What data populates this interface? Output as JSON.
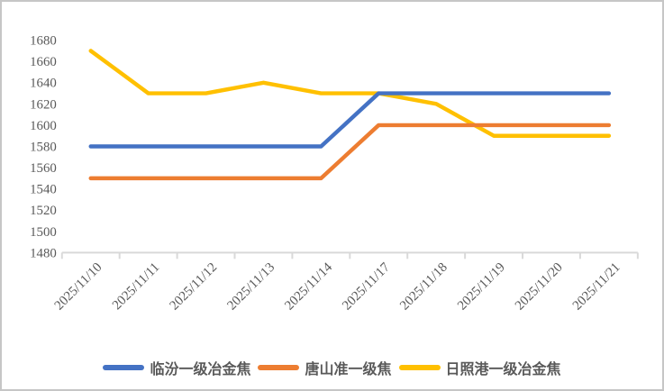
{
  "chart_data": {
    "type": "line",
    "title": "",
    "xlabel": "",
    "ylabel": "",
    "categories": [
      "2025/11/10",
      "2025/11/11",
      "2025/11/12",
      "2025/11/13",
      "2025/11/14",
      "2025/11/17",
      "2025/11/18",
      "2025/11/19",
      "2025/11/20",
      "2025/11/21"
    ],
    "series": [
      {
        "name": "临汾一级冶金焦",
        "color": "#4472C4",
        "values": [
          1580,
          1580,
          1580,
          1580,
          1580,
          1630,
          1630,
          1630,
          1630,
          1630
        ]
      },
      {
        "name": "唐山准一级焦",
        "color": "#ED7D31",
        "values": [
          1550,
          1550,
          1550,
          1550,
          1550,
          1600,
          1600,
          1600,
          1600,
          1600
        ]
      },
      {
        "name": "日照港一级冶金焦",
        "color": "#FFC000",
        "values": [
          1670,
          1630,
          1630,
          1640,
          1630,
          1630,
          1620,
          1590,
          1590,
          1590
        ]
      }
    ],
    "ylim": [
      1480,
      1680
    ],
    "ytick_step": 20,
    "grid": false,
    "legend_position": "bottom",
    "colors": {
      "axis_line": "#D9D9D9",
      "tick_label": "#595959",
      "background": "#FFFFFF",
      "frame_border": "#C6C6C6"
    }
  }
}
